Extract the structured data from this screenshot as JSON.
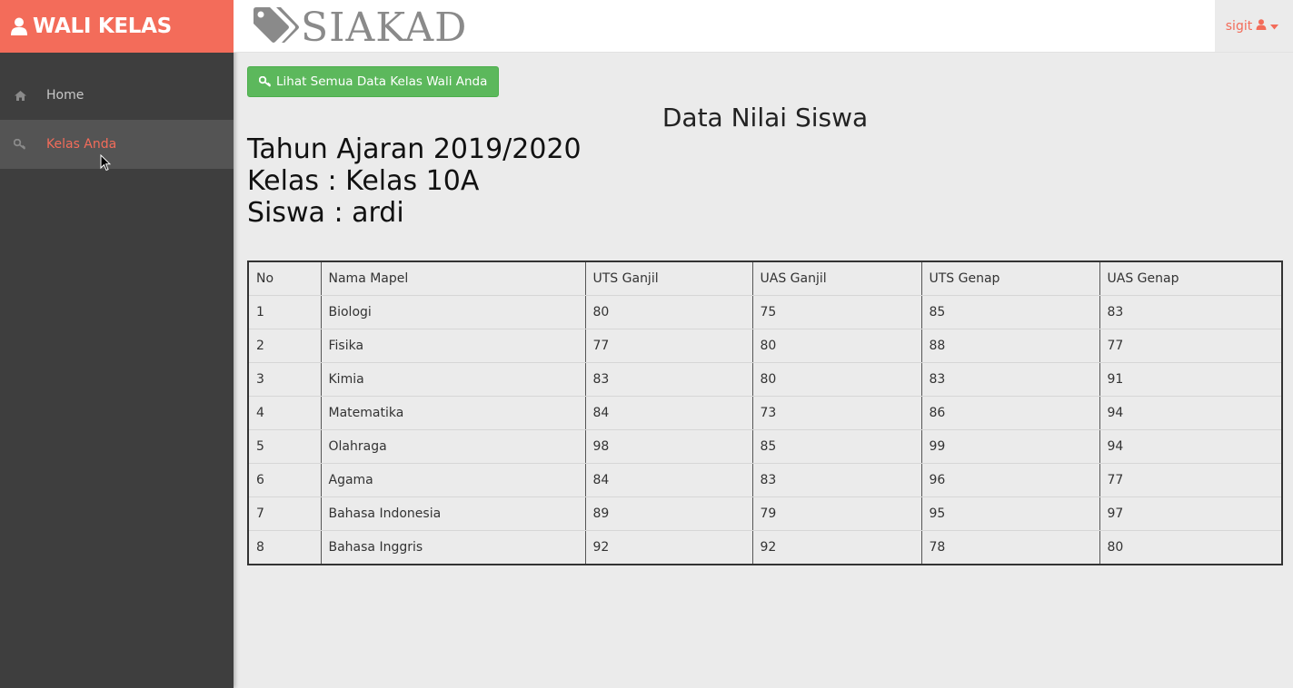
{
  "brand": {
    "title": "WALI KELAS",
    "icon": "user-icon",
    "color": "#f36c5a"
  },
  "nav": [
    {
      "label": "Home",
      "icon": "home-icon"
    },
    {
      "label": "Kelas Anda",
      "icon": "key-icon",
      "active": true
    }
  ],
  "header": {
    "logo_text": "SIAKAD",
    "logo_icon": "tag-icon"
  },
  "user": {
    "name": "sigit",
    "icon": "user-icon",
    "caret": "caret-down-icon"
  },
  "actions": {
    "view_all_label": "Lihat Semua Data Kelas Wali Anda",
    "color": "#5cb85c"
  },
  "content": {
    "title": "Data Nilai Siswa",
    "year": "Tahun Ajaran 2019/2020",
    "class": "Kelas : Kelas 10A",
    "student": "Siswa : ardi"
  },
  "table": {
    "headers": [
      "No",
      "Nama Mapel",
      "UTS Ganjil",
      "UAS Ganjil",
      "UTS Genap",
      "UAS Genap"
    ],
    "rows": [
      [
        "1",
        "Biologi",
        "80",
        "75",
        "85",
        "83"
      ],
      [
        "2",
        "Fisika",
        "77",
        "80",
        "88",
        "77"
      ],
      [
        "3",
        "Kimia",
        "83",
        "80",
        "83",
        "91"
      ],
      [
        "4",
        "Matematika",
        "84",
        "73",
        "86",
        "94"
      ],
      [
        "5",
        "Olahraga",
        "98",
        "85",
        "99",
        "94"
      ],
      [
        "6",
        "Agama",
        "84",
        "83",
        "96",
        "77"
      ],
      [
        "7",
        "Bahasa Indonesia",
        "89",
        "79",
        "95",
        "97"
      ],
      [
        "8",
        "Bahasa Inggris",
        "92",
        "92",
        "78",
        "80"
      ]
    ]
  }
}
